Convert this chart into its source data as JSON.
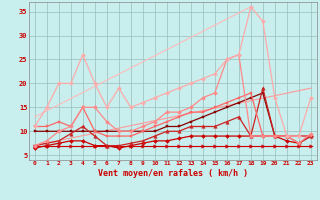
{
  "title": "",
  "xlabel": "Vent moyen/en rafales ( km/h )",
  "ylabel": "",
  "xlim": [
    -0.5,
    23.5
  ],
  "ylim": [
    4,
    37
  ],
  "yticks": [
    5,
    10,
    15,
    20,
    25,
    30,
    35
  ],
  "xticks": [
    0,
    1,
    2,
    3,
    4,
    5,
    6,
    7,
    8,
    9,
    10,
    11,
    12,
    13,
    14,
    15,
    16,
    17,
    18,
    19,
    20,
    21,
    22,
    23
  ],
  "bg_color": "#c8eeed",
  "grid_color": "#9bbcbb",
  "series": [
    {
      "x": [
        0,
        1,
        2,
        3,
        4,
        5,
        6,
        7,
        8,
        9,
        10,
        11,
        12,
        13,
        14,
        15,
        16,
        17,
        18,
        19,
        20,
        21,
        22,
        23
      ],
      "y": [
        7,
        7,
        7,
        7,
        7,
        7,
        7,
        7,
        7,
        7,
        7,
        7,
        7,
        7,
        7,
        7,
        7,
        7,
        7,
        7,
        7,
        7,
        7,
        7
      ],
      "color": "#cc0000",
      "lw": 0.8,
      "marker": ">",
      "ms": 2.5,
      "zorder": 3
    },
    {
      "x": [
        0,
        1,
        2,
        3,
        4,
        5,
        6,
        7,
        8,
        9,
        10,
        11,
        12,
        13,
        14,
        15,
        16,
        17,
        18,
        19,
        20,
        21,
        22,
        23
      ],
      "y": [
        6.5,
        7,
        7.5,
        8,
        8,
        7,
        7,
        6.5,
        7,
        7.5,
        8,
        8,
        8.5,
        9,
        9,
        9,
        9,
        9,
        9,
        9,
        9,
        8,
        7.5,
        9
      ],
      "color": "#cc0000",
      "lw": 0.9,
      "marker": "D",
      "ms": 2,
      "zorder": 3
    },
    {
      "x": [
        0,
        1,
        2,
        3,
        4,
        5,
        6,
        7,
        8,
        9,
        10,
        11,
        12,
        13,
        14,
        15,
        16,
        17,
        18,
        19,
        20,
        21,
        22,
        23
      ],
      "y": [
        7,
        7.5,
        8,
        9.5,
        11,
        9,
        7,
        7,
        7.5,
        8,
        9,
        10,
        10,
        11,
        11,
        11,
        12,
        13,
        9,
        19,
        9,
        9,
        7.5,
        9
      ],
      "color": "#cc2222",
      "lw": 0.9,
      "marker": "^",
      "ms": 2.5,
      "zorder": 3
    },
    {
      "x": [
        0,
        1,
        2,
        3,
        4,
        5,
        6,
        7,
        8,
        9,
        10,
        11,
        12,
        13,
        14,
        15,
        16,
        17,
        18,
        19,
        20,
        21,
        22,
        23
      ],
      "y": [
        10,
        10,
        10,
        10,
        10,
        10,
        10,
        10,
        10,
        10,
        10,
        11,
        11,
        12,
        13,
        14,
        15,
        16,
        17,
        18,
        9,
        9,
        9,
        9
      ],
      "color": "#880000",
      "lw": 0.9,
      "marker": "s",
      "ms": 1.5,
      "zorder": 2
    },
    {
      "x": [
        0,
        1,
        2,
        3,
        4,
        5,
        6,
        7,
        8,
        9,
        10,
        11,
        12,
        13,
        14,
        15,
        16,
        17,
        18,
        19,
        20,
        21,
        22,
        23
      ],
      "y": [
        11,
        11,
        12,
        11,
        15,
        10,
        9,
        9,
        9,
        10,
        11,
        12,
        13,
        14,
        14,
        15,
        16,
        17,
        18,
        9,
        9,
        9,
        9,
        9
      ],
      "color": "#ff6666",
      "lw": 0.9,
      "marker": "s",
      "ms": 2,
      "zorder": 3
    },
    {
      "x": [
        0,
        1,
        2,
        3,
        4,
        5,
        6,
        7,
        8,
        9,
        10,
        11,
        12,
        13,
        14,
        15,
        16,
        17,
        18,
        19,
        20,
        21,
        22,
        23
      ],
      "y": [
        7,
        8,
        10,
        11,
        15,
        15,
        12,
        10,
        10,
        11,
        12,
        14,
        14,
        15,
        17,
        18,
        25,
        26,
        9,
        9,
        9,
        9,
        7.5,
        9.5
      ],
      "color": "#ff8888",
      "lw": 0.9,
      "marker": "D",
      "ms": 2,
      "zorder": 3
    },
    {
      "x": [
        0,
        1,
        2,
        3,
        4,
        5,
        6,
        7,
        8,
        9,
        10,
        11,
        12,
        13,
        14,
        15,
        16,
        17,
        18,
        19,
        20,
        21,
        22,
        23
      ],
      "y": [
        11,
        15,
        20,
        20,
        26,
        20,
        15,
        19,
        15,
        16,
        17,
        18,
        19,
        20,
        21,
        22,
        25,
        26,
        36,
        33,
        17,
        9,
        9,
        17
      ],
      "color": "#ffaaaa",
      "lw": 0.9,
      "marker": "D",
      "ms": 2,
      "zorder": 3
    },
    {
      "x": [
        0,
        23
      ],
      "y": [
        7,
        19
      ],
      "color": "#ff9999",
      "lw": 0.8,
      "marker": "",
      "ms": 0,
      "zorder": 1
    },
    {
      "x": [
        0,
        18
      ],
      "y": [
        13,
        36
      ],
      "color": "#ffbbbb",
      "lw": 0.8,
      "marker": "",
      "ms": 0,
      "zorder": 1
    }
  ]
}
